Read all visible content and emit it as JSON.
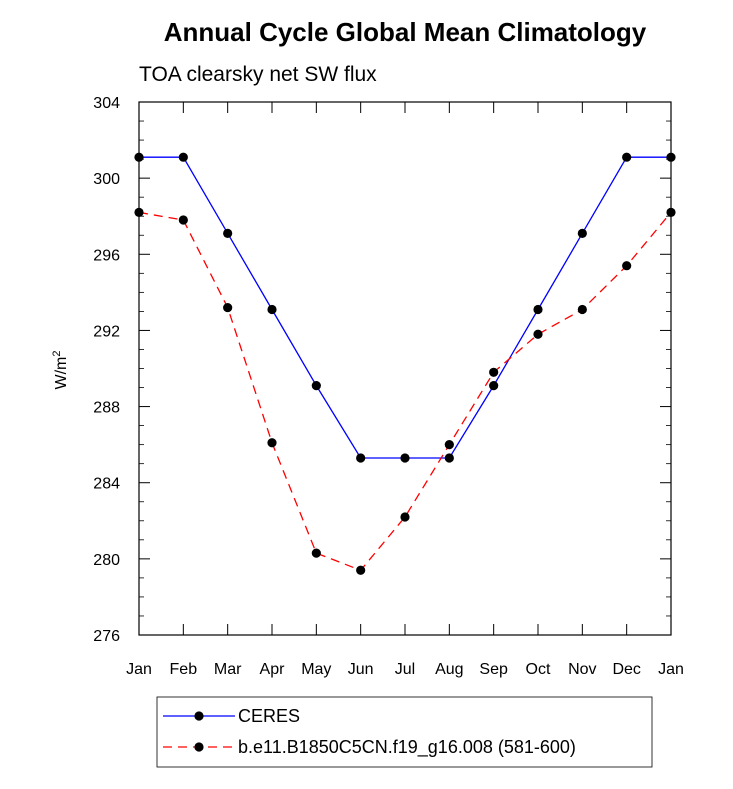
{
  "chart_data": {
    "type": "line",
    "title": "Annual Cycle Global Mean Climatology",
    "subtitle": "TOA clearsky net SW flux",
    "ylabel_base": "W/m",
    "ylabel_superscript": "2",
    "xlabel": "",
    "categories": [
      "Jan",
      "Feb",
      "Mar",
      "Apr",
      "May",
      "Jun",
      "Jul",
      "Aug",
      "Sep",
      "Oct",
      "Nov",
      "Dec",
      "Jan"
    ],
    "ylim": [
      276,
      304
    ],
    "yticks": [
      276,
      280,
      284,
      288,
      292,
      296,
      300,
      304
    ],
    "grid": false,
    "legend_position": "bottom",
    "series": [
      {
        "name": "CERES",
        "values": [
          301.1,
          301.1,
          297.1,
          293.1,
          289.1,
          285.3,
          285.3,
          285.3,
          289.1,
          293.1,
          297.1,
          301.1,
          301.1
        ],
        "color": "#0000ff",
        "dash": "solid"
      },
      {
        "name": "b.e11.B1850C5CN.f19_g16.008 (581-600)",
        "values": [
          298.2,
          297.8,
          293.2,
          286.1,
          280.3,
          279.4,
          282.2,
          286.0,
          289.8,
          291.8,
          293.1,
          295.4,
          298.2
        ],
        "color": "#ff0000",
        "dash": "dashed"
      }
    ]
  }
}
